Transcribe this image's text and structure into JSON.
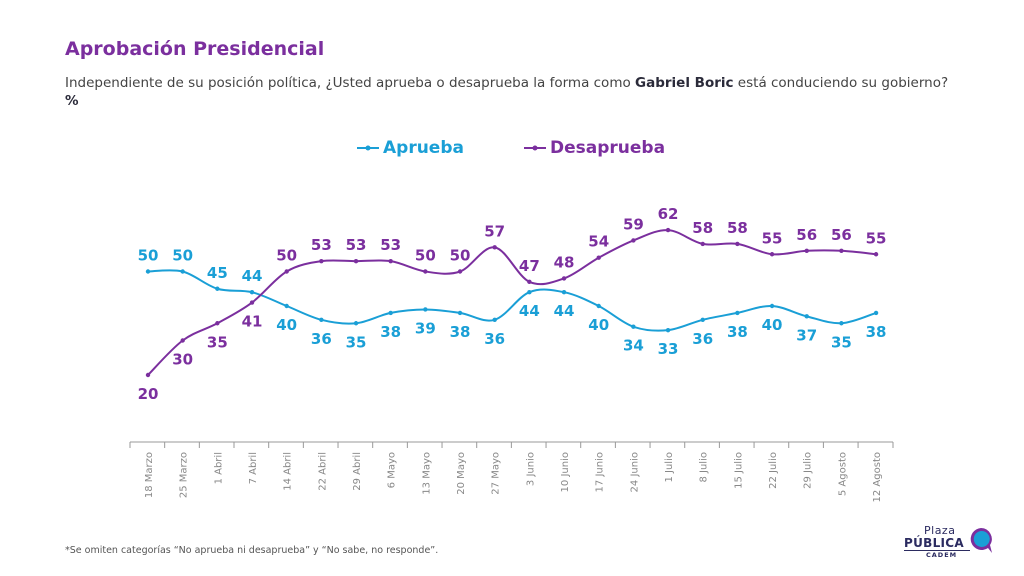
{
  "header": {
    "title": "Aprobación Presidencial",
    "subtitle_pre": "Independiente de su posición política, ¿Usted aprueba o desaprueba la forma como ",
    "subtitle_bold": "Gabriel Boric",
    "subtitle_post": " está conduciendo su gobierno? ",
    "subtitle_unit": "%"
  },
  "legend": {
    "aprueba": "Aprueba",
    "desaprueba": "Desaprueba"
  },
  "colors": {
    "aprueba": "#1a9fd6",
    "desaprueba": "#7b2f9e",
    "axis": "#999999",
    "tick_text": "#888888"
  },
  "footnote": "*Se omiten categorías “No aprueba ni desaprueba” y “No sabe, no responde”.",
  "logo": {
    "line1": "Plaza",
    "line2": "PÚBLICA",
    "line3": "CADEM"
  },
  "chart_data": {
    "type": "line",
    "title": "Aprobación Presidencial",
    "categories": [
      "18 Marzo",
      "25 Marzo",
      "1 Abril",
      "7 Abril",
      "14 Abril",
      "22 Abril",
      "29 Abril",
      "6 Mayo",
      "13 Mayo",
      "20 Mayo",
      "27 Mayo",
      "3 Junio",
      "10 Junio",
      "17 Junio",
      "24 Junio",
      "1 Julio",
      "8 Julio",
      "15 Julio",
      "22 Julio",
      "29 Julio",
      "5 Agosto",
      "12 Agosto"
    ],
    "series": [
      {
        "name": "Aprueba",
        "values": [
          50,
          50,
          45,
          44,
          40,
          36,
          35,
          38,
          39,
          38,
          36,
          44,
          44,
          40,
          34,
          33,
          36,
          38,
          40,
          37,
          35,
          38
        ]
      },
      {
        "name": "Desaprueba",
        "values": [
          20,
          30,
          35,
          41,
          50,
          53,
          53,
          53,
          50,
          50,
          57,
          47,
          48,
          54,
          59,
          62,
          58,
          58,
          55,
          56,
          56,
          55
        ]
      }
    ],
    "legend_position": "top-center",
    "grid": false,
    "data_labels": true
  }
}
